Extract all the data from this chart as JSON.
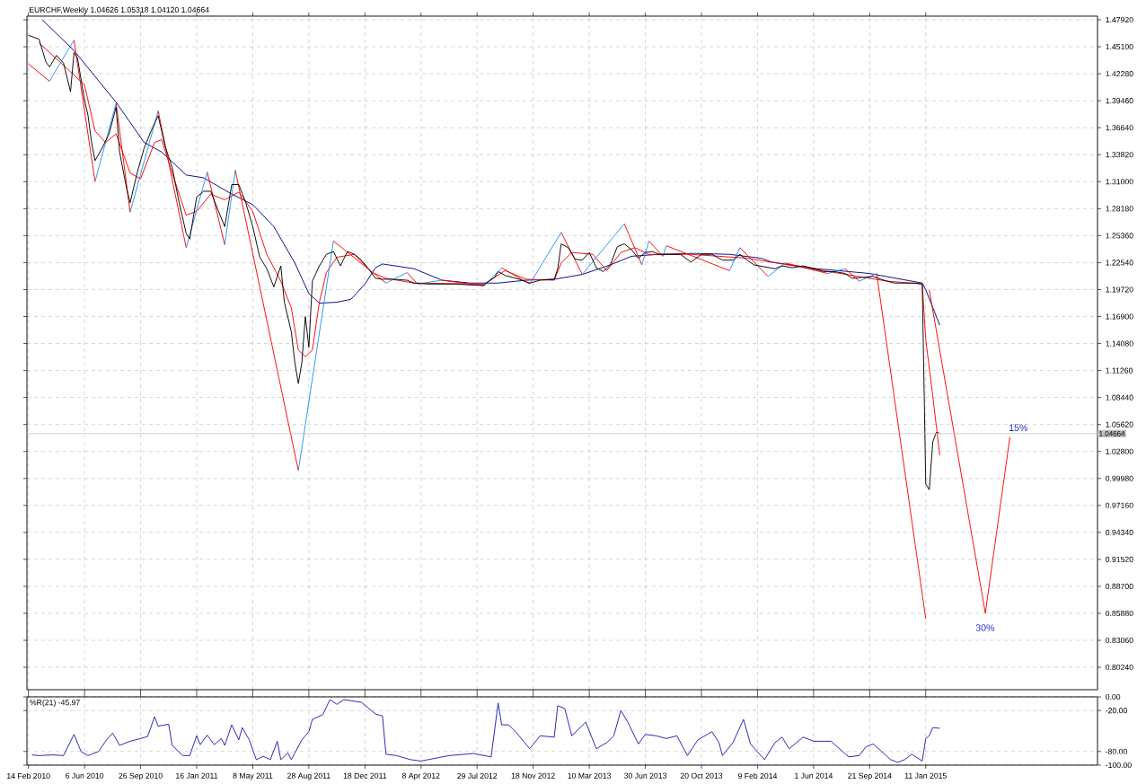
{
  "chart_data": [
    {
      "type": "line",
      "title": "EURCHF,Weekly  1.04626 1.05318 1.04120 1.04664",
      "xlim": [
        "2010-02-11",
        "2015-12-20"
      ],
      "ylim": [
        0.779,
        1.483
      ],
      "xticks": [
        {
          "value": "2010-02-14",
          "label": null
        },
        {
          "value": "2010-06-06",
          "label": null
        },
        {
          "value": "2010-09-26",
          "label": null
        },
        {
          "value": "2011-01-16",
          "label": null
        },
        {
          "value": "2011-05-08",
          "label": null
        },
        {
          "value": "2011-08-28",
          "label": null
        },
        {
          "value": "2011-12-18",
          "label": null
        },
        {
          "value": "2012-04-08",
          "label": null
        },
        {
          "value": "2012-07-29",
          "label": null
        },
        {
          "value": "2012-11-18",
          "label": null
        },
        {
          "value": "2013-03-10",
          "label": null
        },
        {
          "value": "2013-06-30",
          "label": null
        },
        {
          "value": "2013-10-20",
          "label": null
        },
        {
          "value": "2014-02-09",
          "label": null
        },
        {
          "value": "2014-06-01",
          "label": null
        },
        {
          "value": "2014-09-21",
          "label": null
        },
        {
          "value": "2015-01-11",
          "label": null
        }
      ],
      "yticks": [
        {
          "value": 1.4792,
          "label": "1.47920"
        },
        {
          "value": 1.451,
          "label": "1.45100"
        },
        {
          "value": 1.4228,
          "label": "1.42280"
        },
        {
          "value": 1.3946,
          "label": "1.39460"
        },
        {
          "value": 1.3664,
          "label": "1.36640"
        },
        {
          "value": 1.3382,
          "label": "1.33820"
        },
        {
          "value": 1.31,
          "label": "1.31000"
        },
        {
          "value": 1.2818,
          "label": "1.28180"
        },
        {
          "value": 1.2536,
          "label": "1.25360"
        },
        {
          "value": 1.2254,
          "label": "1.22540"
        },
        {
          "value": 1.1972,
          "label": "1.19720"
        },
        {
          "value": 1.169,
          "label": "1.16900"
        },
        {
          "value": 1.1408,
          "label": "1.14080"
        },
        {
          "value": 1.1126,
          "label": "1.11260"
        },
        {
          "value": 1.0844,
          "label": "1.08440"
        },
        {
          "value": 1.0562,
          "label": "1.05620"
        },
        {
          "value": 1.028,
          "label": "1.02800"
        },
        {
          "value": 0.9998,
          "label": "0.99980"
        },
        {
          "value": 0.9716,
          "label": "0.97160"
        },
        {
          "value": 0.9434,
          "label": "0.94340"
        },
        {
          "value": 0.9152,
          "label": "0.91520"
        },
        {
          "value": 0.887,
          "label": "0.88700"
        },
        {
          "value": 0.8588,
          "label": "0.85880"
        },
        {
          "value": 0.8306,
          "label": "0.83060"
        },
        {
          "value": 0.8024,
          "label": "0.80240"
        }
      ],
      "grid": true,
      "tick_labels": "y",
      "ref_lines": [
        {
          "axis": "y",
          "value": 1.04664,
          "label": "1.04664",
          "color": "#c0c0c0"
        }
      ],
      "annotations": [
        "30%",
        "15%"
      ],
      "series": [
        {
          "color": "#000000",
          "x": [
            "2010-02-14",
            "2010-03-07",
            "2010-03-21",
            "2010-03-28",
            "2010-04-11",
            "2010-04-25",
            "2010-05-09",
            "2010-05-16",
            "2010-05-23",
            "2010-06-06",
            "2010-06-13",
            "2010-06-20",
            "2010-06-27",
            "2010-07-11",
            "2010-07-25",
            "2010-08-08",
            "2010-08-15",
            "2010-08-29",
            "2010-09-05",
            "2010-09-19",
            "2010-10-03",
            "2010-10-17",
            "2010-10-31",
            "2010-11-14",
            "2010-11-28",
            "2010-12-12",
            "2010-12-26",
            "2011-01-02",
            "2011-01-16",
            "2011-01-30",
            "2011-02-13",
            "2011-02-27",
            "2011-03-13",
            "2011-03-27",
            "2011-04-10",
            "2011-04-24",
            "2011-05-08",
            "2011-05-22",
            "2011-06-05",
            "2011-06-19",
            "2011-07-03",
            "2011-07-10",
            "2011-07-24",
            "2011-07-31",
            "2011-08-07",
            "2011-08-14",
            "2011-08-21",
            "2011-08-28",
            "2011-09-04",
            "2011-09-18",
            "2011-10-02",
            "2011-10-16",
            "2011-10-30",
            "2011-11-13",
            "2011-11-27",
            "2011-12-11",
            "2011-12-25",
            "2012-01-08",
            "2012-01-22",
            "2012-02-12",
            "2012-03-11",
            "2012-03-25",
            "2012-04-22",
            "2012-05-20",
            "2012-06-17",
            "2012-07-15",
            "2012-08-12",
            "2012-08-19",
            "2012-09-02",
            "2012-09-09",
            "2012-09-23",
            "2012-10-07",
            "2012-10-21",
            "2012-11-11",
            "2012-12-02",
            "2012-12-30",
            "2013-01-06",
            "2013-01-13",
            "2013-01-27",
            "2013-02-10",
            "2013-02-24",
            "2013-03-10",
            "2013-03-24",
            "2013-04-07",
            "2013-04-21",
            "2013-05-05",
            "2013-05-19",
            "2013-06-02",
            "2013-06-16",
            "2013-06-30",
            "2013-07-14",
            "2013-07-28",
            "2013-08-18",
            "2013-09-08",
            "2013-09-29",
            "2013-10-20",
            "2013-11-10",
            "2013-12-01",
            "2013-12-22",
            "2014-01-05",
            "2014-01-19",
            "2014-02-02",
            "2014-03-16",
            "2014-03-30",
            "2014-04-20",
            "2014-05-11",
            "2014-06-01",
            "2014-06-22",
            "2014-07-13",
            "2014-08-03",
            "2014-08-17",
            "2014-09-07",
            "2014-09-28",
            "2014-10-19",
            "2014-11-09",
            "2014-11-30",
            "2014-12-21",
            "2015-01-04",
            "2015-01-11",
            "2015-01-18",
            "2015-01-25",
            "2015-02-01",
            "2015-02-08"
          ],
          "values": [
            1.463,
            1.459,
            1.435,
            1.43,
            1.442,
            1.434,
            1.404,
            1.445,
            1.439,
            1.395,
            1.379,
            1.351,
            1.332,
            1.345,
            1.36,
            1.388,
            1.341,
            1.303,
            1.288,
            1.319,
            1.345,
            1.363,
            1.379,
            1.347,
            1.325,
            1.288,
            1.256,
            1.25,
            1.294,
            1.3,
            1.3,
            1.281,
            1.263,
            1.307,
            1.307,
            1.288,
            1.263,
            1.231,
            1.219,
            1.2,
            1.222,
            1.184,
            1.153,
            1.121,
            1.099,
            1.121,
            1.169,
            1.137,
            1.206,
            1.222,
            1.234,
            1.237,
            1.222,
            1.237,
            1.234,
            1.228,
            1.219,
            1.209,
            1.208,
            1.208,
            1.207,
            1.204,
            1.203,
            1.203,
            1.203,
            1.202,
            1.202,
            1.205,
            1.21,
            1.216,
            1.212,
            1.21,
            1.208,
            1.204,
            1.207,
            1.208,
            1.219,
            1.245,
            1.241,
            1.229,
            1.228,
            1.236,
            1.22,
            1.216,
            1.223,
            1.242,
            1.245,
            1.239,
            1.23,
            1.236,
            1.237,
            1.234,
            1.234,
            1.234,
            1.226,
            1.234,
            1.234,
            1.228,
            1.228,
            1.234,
            1.228,
            1.223,
            1.219,
            1.222,
            1.22,
            1.222,
            1.219,
            1.216,
            1.216,
            1.214,
            1.209,
            1.21,
            1.211,
            1.207,
            1.204,
            1.204,
            1.204,
            1.203,
            0.994,
            0.988,
            1.038,
            1.048,
            1.047
          ]
        },
        {
          "color": "#000080",
          "x": [
            "2010-03-14",
            "2010-05-16",
            "2010-08-08",
            "2010-10-03",
            "2010-11-07",
            "2010-12-26",
            "2011-01-30",
            "2011-03-27",
            "2011-05-08",
            "2011-06-19",
            "2011-07-31",
            "2011-08-28",
            "2011-09-18",
            "2011-10-23",
            "2011-11-20",
            "2011-12-18",
            "2012-01-08",
            "2012-01-22",
            "2012-03-25",
            "2012-05-20",
            "2012-07-15",
            "2012-09-09",
            "2012-11-04",
            "2012-12-30",
            "2013-02-24",
            "2013-04-21",
            "2013-06-02",
            "2013-07-28",
            "2013-10-06",
            "2013-12-15",
            "2014-02-16",
            "2014-03-09",
            "2014-06-08",
            "2014-09-21",
            "2015-01-04",
            "2015-01-11",
            "2015-02-08"
          ],
          "values": [
            1.479,
            1.447,
            1.393,
            1.351,
            1.341,
            1.317,
            1.314,
            1.297,
            1.286,
            1.263,
            1.225,
            1.193,
            1.183,
            1.184,
            1.187,
            1.203,
            1.22,
            1.224,
            1.219,
            1.207,
            1.204,
            1.204,
            1.207,
            1.208,
            1.213,
            1.223,
            1.232,
            1.234,
            1.235,
            1.234,
            1.23,
            1.226,
            1.219,
            1.214,
            1.204,
            1.197,
            1.16
          ]
        },
        {
          "color": "#ff0000",
          "x": [
            "2010-03-07",
            "2010-05-09",
            "2010-06-06",
            "2010-06-27",
            "2010-07-18",
            "2010-08-08",
            "2010-09-05",
            "2010-09-26",
            "2010-10-24",
            "2010-11-07",
            "2010-11-28",
            "2010-12-26",
            "2011-01-16",
            "2011-02-13",
            "2011-03-13",
            "2011-04-10",
            "2011-05-08",
            "2011-06-05",
            "2011-07-03",
            "2011-07-24",
            "2011-08-07",
            "2011-08-21",
            "2011-09-04",
            "2011-09-18",
            "2011-10-02",
            "2011-10-23",
            "2011-11-27",
            "2012-01-01",
            "2012-01-29",
            "2012-03-25",
            "2012-08-12",
            "2012-09-23",
            "2012-11-04",
            "2012-12-30",
            "2013-01-13",
            "2013-02-03",
            "2013-03-17",
            "2013-04-14",
            "2013-05-12",
            "2013-06-09",
            "2013-07-07",
            "2013-09-29",
            "2014-01-19",
            "2014-06-08",
            "2014-10-26",
            "2015-01-04",
            "2015-01-11",
            "2015-01-25",
            "2015-02-08"
          ],
          "values": [
            1.455,
            1.425,
            1.411,
            1.363,
            1.351,
            1.36,
            1.319,
            1.313,
            1.351,
            1.354,
            1.319,
            1.275,
            1.279,
            1.297,
            1.291,
            1.299,
            1.279,
            1.234,
            1.206,
            1.178,
            1.134,
            1.127,
            1.134,
            1.184,
            1.215,
            1.231,
            1.234,
            1.215,
            1.209,
            1.204,
            1.203,
            1.217,
            1.208,
            1.207,
            1.225,
            1.236,
            1.234,
            1.217,
            1.236,
            1.241,
            1.234,
            1.234,
            1.23,
            1.218,
            1.206,
            1.203,
            1.145,
            1.086,
            1.024
          ]
        },
        {
          "color": "#ff0000",
          "x": [
            "2010-02-14",
            "2010-03-28",
            null,
            "2010-05-16",
            "2010-06-27",
            null,
            "2010-08-08",
            "2010-09-05",
            null,
            "2010-10-31",
            "2010-12-26",
            null,
            "2011-02-06",
            "2011-03-13",
            null,
            "2011-04-03",
            "2011-08-07",
            null,
            "2011-10-16",
            "2012-01-29",
            null,
            "2012-03-11",
            "2012-04-01",
            null,
            "2012-05-20",
            "2012-08-12",
            null,
            "2012-09-16",
            "2012-11-11",
            null,
            "2013-01-13",
            "2013-02-24",
            null,
            "2013-05-19",
            "2013-06-23",
            null,
            "2013-07-07",
            "2013-08-04",
            null,
            "2013-08-11",
            "2013-12-15",
            null,
            "2014-01-05",
            "2014-03-02",
            null,
            "2014-04-06",
            "2014-06-29",
            null,
            "2014-08-03",
            "2014-08-31",
            null,
            "2014-10-05",
            "2015-01-11"
          ],
          "values": [
            1.433,
            1.415,
            null,
            1.458,
            1.31,
            null,
            1.392,
            1.278,
            null,
            1.384,
            1.241,
            null,
            1.32,
            1.244,
            null,
            1.322,
            1.008,
            null,
            1.248,
            1.204,
            null,
            1.215,
            1.203,
            null,
            1.207,
            1.201,
            null,
            1.22,
            1.203,
            null,
            1.257,
            1.213,
            null,
            1.266,
            1.223,
            null,
            1.248,
            1.232,
            null,
            1.243,
            1.217,
            null,
            1.241,
            1.211,
            null,
            1.225,
            1.214,
            null,
            1.219,
            1.206,
            null,
            1.214,
            0.853
          ]
        },
        {
          "color": "#1e90ff",
          "x": [
            "2010-03-28",
            "2010-05-16",
            null,
            "2010-06-27",
            "2010-08-08",
            null,
            "2010-09-05",
            "2010-10-31",
            null,
            "2010-12-26",
            "2011-02-06",
            null,
            "2011-03-13",
            "2011-04-03",
            null,
            "2011-08-07",
            "2011-10-16",
            null,
            "2012-01-29",
            "2012-03-11",
            null,
            "2012-04-01",
            "2012-05-20",
            null,
            "2012-08-12",
            "2012-09-16",
            null,
            "2012-11-11",
            "2013-01-13",
            null,
            "2013-02-24",
            "2013-05-19",
            null,
            "2013-06-23",
            "2013-07-07",
            null,
            "2013-08-04",
            "2013-08-11",
            null,
            "2013-12-15",
            "2014-01-05",
            null,
            "2014-03-02",
            "2014-04-06",
            null,
            "2014-06-29",
            "2014-08-03",
            null,
            "2014-08-31",
            "2014-10-05"
          ],
          "values": [
            1.415,
            1.458,
            null,
            1.31,
            1.392,
            null,
            1.278,
            1.384,
            null,
            1.241,
            1.32,
            null,
            1.244,
            1.322,
            null,
            1.008,
            1.248,
            null,
            1.204,
            1.215,
            null,
            1.203,
            1.207,
            null,
            1.201,
            1.22,
            null,
            1.203,
            1.257,
            null,
            1.213,
            1.266,
            null,
            1.223,
            1.248,
            null,
            1.232,
            1.243,
            null,
            1.217,
            1.241,
            null,
            1.211,
            1.225,
            null,
            1.214,
            1.219,
            null,
            1.206,
            1.214
          ]
        },
        {
          "color": "#ff0000",
          "x": [
            "2015-01-18",
            "2015-05-10",
            "2015-06-28"
          ],
          "values": [
            1.197,
            0.859,
            1.043
          ]
        }
      ]
    },
    {
      "type": "line",
      "title": "%R(21) -45.97",
      "xlim": [
        "2010-02-11",
        "2015-12-20"
      ],
      "ylim": [
        -100,
        0
      ],
      "xticks": [
        {
          "value": "2010-02-14",
          "label": "14 Feb 2010"
        },
        {
          "value": "2010-06-06",
          "label": "6 Jun 2010"
        },
        {
          "value": "2010-09-26",
          "label": "26 Sep 2010"
        },
        {
          "value": "2011-01-16",
          "label": "16 Jan 2011"
        },
        {
          "value": "2011-05-08",
          "label": "8 May 2011"
        },
        {
          "value": "2011-08-28",
          "label": "28 Aug 2011"
        },
        {
          "value": "2011-12-18",
          "label": "18 Dec 2011"
        },
        {
          "value": "2012-04-08",
          "label": "8 Apr 2012"
        },
        {
          "value": "2012-07-29",
          "label": "29 Jul 2012"
        },
        {
          "value": "2012-11-18",
          "label": "18 Nov 2012"
        },
        {
          "value": "2013-03-10",
          "label": "10 Mar 2013"
        },
        {
          "value": "2013-06-30",
          "label": "30 Jun 2013"
        },
        {
          "value": "2013-10-20",
          "label": "20 Oct 2013"
        },
        {
          "value": "2014-02-09",
          "label": "9 Feb 2014"
        },
        {
          "value": "2014-06-01",
          "label": "1 Jun 2014"
        },
        {
          "value": "2014-09-21",
          "label": "21 Sep 2014"
        },
        {
          "value": "2015-01-11",
          "label": "11 Jan 2015"
        }
      ],
      "yticks": [
        {
          "value": 0,
          "label": "0.00"
        },
        {
          "value": -20,
          "label": "-20.00"
        },
        {
          "value": -80,
          "label": "-80.00"
        },
        {
          "value": -100,
          "label": "-100.00"
        }
      ],
      "grid": true,
      "series": [
        {
          "color": "#1c1cb4",
          "x": [
            "2010-02-21",
            "2010-03-07",
            "2010-04-04",
            "2010-04-25",
            "2010-05-16",
            "2010-05-30",
            "2010-06-13",
            "2010-07-04",
            "2010-07-18",
            "2010-08-01",
            "2010-08-15",
            "2010-09-05",
            "2010-09-26",
            "2010-10-10",
            "2010-10-24",
            "2010-10-31",
            "2010-11-21",
            "2010-11-28",
            "2010-12-19",
            "2011-01-02",
            "2011-01-16",
            "2011-01-23",
            "2011-02-06",
            "2011-02-20",
            "2011-03-06",
            "2011-03-13",
            "2011-03-27",
            "2011-04-10",
            "2011-04-17",
            "2011-05-01",
            "2011-05-15",
            "2011-05-29",
            "2011-06-12",
            "2011-06-26",
            "2011-07-03",
            "2011-07-17",
            "2011-07-24",
            "2011-08-14",
            "2011-08-28",
            "2011-09-04",
            "2011-09-25",
            "2011-10-09",
            "2011-10-23",
            "2011-11-06",
            "2011-12-11",
            "2012-01-08",
            "2012-01-22",
            "2012-01-29",
            "2012-02-19",
            "2012-03-18",
            "2012-04-08",
            "2012-06-03",
            "2012-07-22",
            "2012-08-26",
            "2012-09-09",
            "2012-09-16",
            "2012-09-30",
            "2012-10-14",
            "2012-11-11",
            "2012-12-02",
            "2012-12-30",
            "2013-01-06",
            "2013-01-20",
            "2013-02-03",
            "2013-03-03",
            "2013-03-24",
            "2013-04-14",
            "2013-04-28",
            "2013-05-12",
            "2013-05-26",
            "2013-06-16",
            "2013-06-30",
            "2013-07-21",
            "2013-08-11",
            "2013-09-01",
            "2013-09-22",
            "2013-10-13",
            "2013-11-10",
            "2013-11-24",
            "2013-12-01",
            "2013-12-22",
            "2014-01-12",
            "2014-01-26",
            "2014-02-23",
            "2014-03-16",
            "2014-03-30",
            "2014-04-13",
            "2014-05-11",
            "2014-06-01",
            "2014-07-06",
            "2014-08-10",
            "2014-08-31",
            "2014-09-14",
            "2014-09-28",
            "2014-11-02",
            "2014-11-16",
            "2014-11-30",
            "2014-12-14",
            "2015-01-04",
            "2015-01-11",
            "2015-01-18",
            "2015-01-25",
            "2015-02-08"
          ],
          "values": [
            -85,
            -86,
            -85,
            -86,
            -55,
            -80,
            -86,
            -80,
            -65,
            -53,
            -71,
            -65,
            -61,
            -58,
            -29,
            -43,
            -40,
            -71,
            -86,
            -86,
            -57,
            -70,
            -56,
            -70,
            -61,
            -71,
            -41,
            -63,
            -45,
            -63,
            -92,
            -87,
            -92,
            -65,
            -92,
            -82,
            -92,
            -63,
            -51,
            -33,
            -26,
            -4,
            -11,
            -4,
            -8,
            -25,
            -28,
            -84,
            -86,
            -92,
            -94,
            -86,
            -83,
            -88,
            -9,
            -41,
            -41,
            -51,
            -76,
            -57,
            -59,
            -13,
            -17,
            -57,
            -37,
            -76,
            -67,
            -57,
            -20,
            -37,
            -69,
            -55,
            -57,
            -61,
            -57,
            -86,
            -63,
            -51,
            -67,
            -86,
            -67,
            -33,
            -69,
            -92,
            -67,
            -59,
            -76,
            -59,
            -65,
            -65,
            -88,
            -86,
            -73,
            -69,
            -92,
            -96,
            -92,
            -84,
            -94,
            -61,
            -57,
            -45,
            -46
          ]
        }
      ]
    }
  ]
}
